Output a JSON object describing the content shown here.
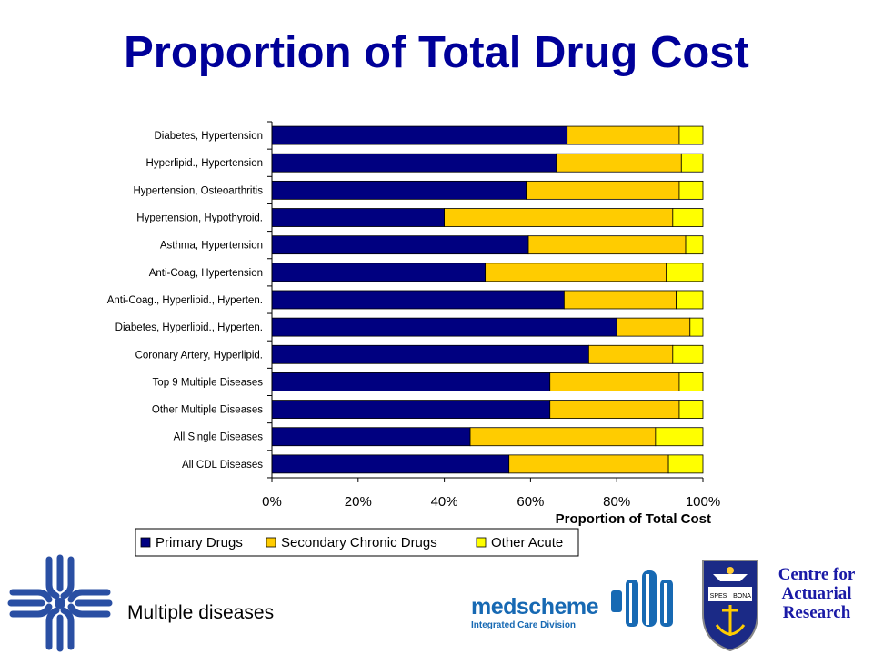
{
  "title": "Proportion of Total Drug Cost",
  "footer": {
    "caption": "Multiple diseases",
    "medscheme_name": "medscheme",
    "medscheme_division": "Integrated Care Division",
    "centre_line1": "Centre for",
    "centre_line2": "Actuarial",
    "centre_line3": "Research",
    "seal_text_left": "SPES",
    "seal_text_right": "BONA"
  },
  "chart_data": {
    "type": "bar",
    "orientation": "horizontal",
    "stacked": true,
    "xlabel": "Proportion of Total Cost",
    "ylabel": "",
    "xlim": [
      0,
      100
    ],
    "x_ticks": [
      "0%",
      "20%",
      "40%",
      "60%",
      "80%",
      "100%"
    ],
    "grid": false,
    "legend_position": "bottom",
    "categories": [
      "Diabetes, Hypertension",
      "Hyperlipid., Hypertension",
      "Hypertension, Osteoarthritis",
      "Hypertension, Hypothyroid.",
      "Asthma, Hypertension",
      "Anti-Coag, Hypertension",
      "Anti-Coag., Hyperlipid., Hyperten.",
      "Diabetes, Hyperlipid., Hyperten.",
      "Coronary Artery, Hyperlipid.",
      "Top 9 Multiple Diseases",
      "Other Multiple Diseases",
      "All Single Diseases",
      "All CDL Diseases"
    ],
    "series": [
      {
        "name": "Primary Drugs",
        "color": "#000080",
        "values": [
          68.5,
          66,
          59,
          40,
          59.5,
          49.5,
          67.8,
          80,
          73.5,
          64.5,
          64.5,
          46,
          55
        ]
      },
      {
        "name": "Secondary Chronic Drugs",
        "color": "#ffcc00",
        "values": [
          26,
          29,
          35.5,
          53,
          36.5,
          42,
          26,
          17,
          19.5,
          30,
          30,
          43,
          37
        ]
      },
      {
        "name": "Other Acute",
        "color": "#ffff00",
        "values": [
          5.5,
          5,
          5.5,
          7,
          4,
          8.5,
          6.2,
          3,
          7,
          5.5,
          5.5,
          11,
          8
        ]
      }
    ]
  }
}
